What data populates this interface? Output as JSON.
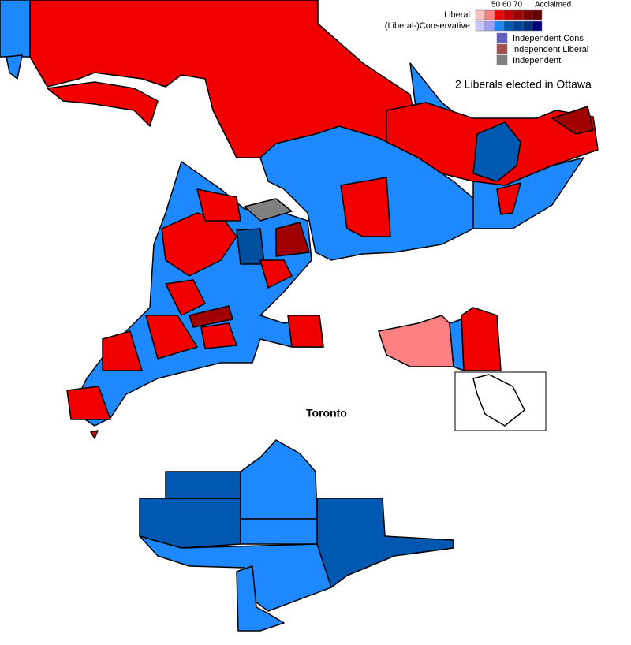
{
  "legend": {
    "scale_labels": [
      "50",
      "60",
      "70"
    ],
    "acclaimed": "Acclaimed",
    "liberal": "Liberal",
    "conservative": "(Liberal-)Conservative",
    "independent_cons": "Independent Cons",
    "independent_liberal": "Independent Liberal",
    "independent": "Independent"
  },
  "note": "2 Liberals elected in Ottawa",
  "inset_label": "Toronto"
}
